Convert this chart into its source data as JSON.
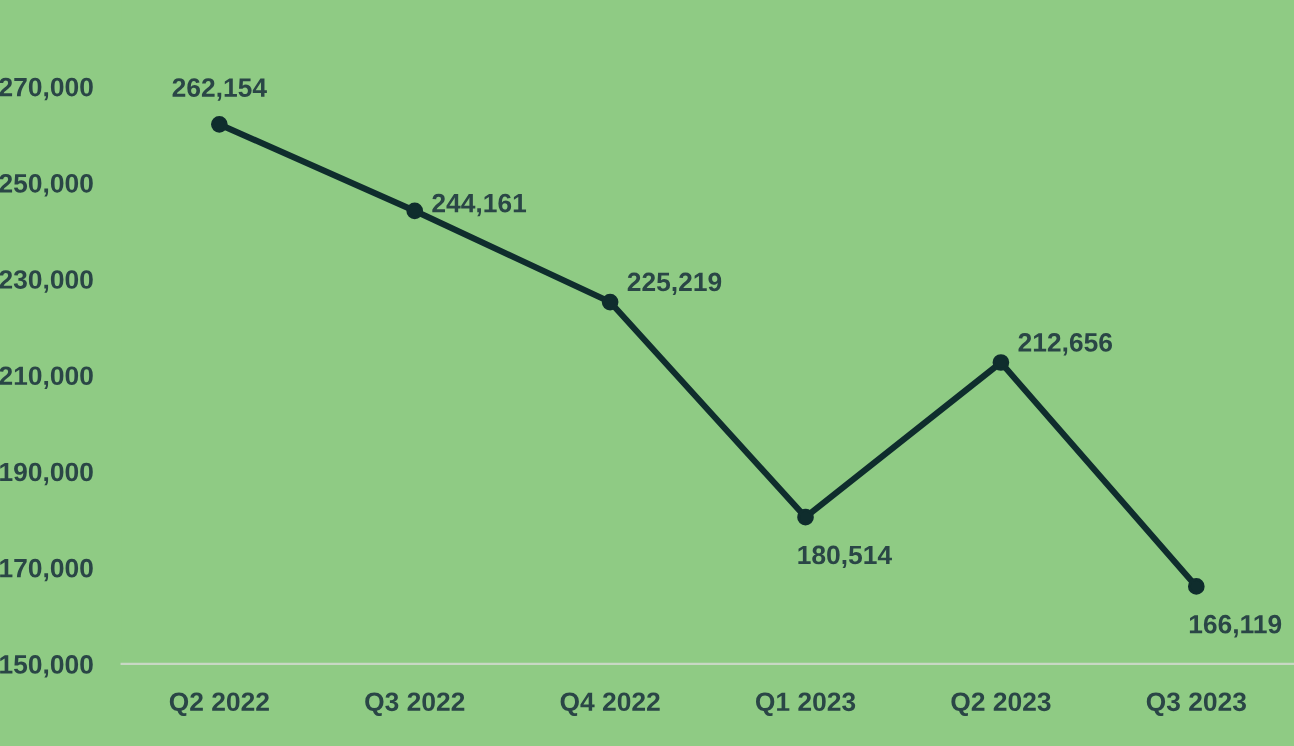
{
  "chart_data": {
    "type": "line",
    "categories": [
      "Q2 2022",
      "Q3 2022",
      "Q4 2022",
      "Q1 2023",
      "Q2 2023",
      "Q3 2023"
    ],
    "series": [
      {
        "color": "#0f2d2d",
        "values": [
          262154,
          244161,
          225219,
          180514,
          212656,
          166119
        ],
        "value_labels": [
          "262,154",
          "244,161",
          "225,219",
          "180,514",
          "212,656",
          "166,119"
        ]
      }
    ],
    "ylim": [
      150000,
      288000
    ],
    "yticks": [
      {
        "value": 150000,
        "label": "150,000"
      },
      {
        "value": 170000,
        "label": "170,000"
      },
      {
        "value": 190000,
        "label": "190,000"
      },
      {
        "value": 210000,
        "label": "210,000"
      },
      {
        "value": 230000,
        "label": "230,000"
      },
      {
        "value": 250000,
        "label": "250,000"
      },
      {
        "value": 270000,
        "label": "270,000"
      }
    ],
    "grid": false,
    "marker": "circle",
    "line_style": "solid"
  }
}
